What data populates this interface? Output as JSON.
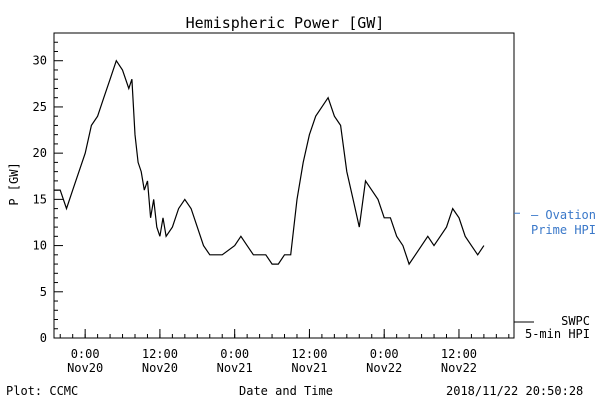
{
  "chart_data": {
    "type": "line",
    "title": "Hemispheric Power [GW]",
    "ylabel": "P [GW]",
    "xlabel": "Date and Time",
    "ylim": [
      0,
      33
    ],
    "xlim": [
      "2018-11-19 19:00",
      "2018-11-22 20:50"
    ],
    "y_ticks": [
      0,
      5,
      10,
      15,
      20,
      25,
      30
    ],
    "x_ticks": [
      {
        "t": "2018-11-20 00:00",
        "line1": "0:00",
        "line2": "Nov20"
      },
      {
        "t": "2018-11-20 12:00",
        "line1": "12:00",
        "line2": "Nov20"
      },
      {
        "t": "2018-11-21 00:00",
        "line1": "0:00",
        "line2": "Nov21"
      },
      {
        "t": "2018-11-21 12:00",
        "line1": "12:00",
        "line2": "Nov21"
      },
      {
        "t": "2018-11-22 00:00",
        "line1": "0:00",
        "line2": "Nov22"
      },
      {
        "t": "2018-11-22 12:00",
        "line1": "12:00",
        "line2": "Nov22"
      }
    ],
    "grid": false,
    "legend_position": "right",
    "series": [
      {
        "name": "SWPC 5-min HPI",
        "label_lines": [
          "SWPC",
          "5-min HPI"
        ],
        "style": "solid",
        "color": "#000000",
        "points": [
          [
            "2018-11-19 19:00",
            16
          ],
          [
            "2018-11-19 20:00",
            16
          ],
          [
            "2018-11-19 21:00",
            14
          ],
          [
            "2018-11-19 22:00",
            16
          ],
          [
            "2018-11-20 00:00",
            20
          ],
          [
            "2018-11-20 01:00",
            23
          ],
          [
            "2018-11-20 02:00",
            24
          ],
          [
            "2018-11-20 03:00",
            26
          ],
          [
            "2018-11-20 04:00",
            28
          ],
          [
            "2018-11-20 05:00",
            30
          ],
          [
            "2018-11-20 06:00",
            29
          ],
          [
            "2018-11-20 07:00",
            27
          ],
          [
            "2018-11-20 07:30",
            28
          ],
          [
            "2018-11-20 08:00",
            22
          ],
          [
            "2018-11-20 08:30",
            19
          ],
          [
            "2018-11-20 09:00",
            18
          ],
          [
            "2018-11-20 09:30",
            16
          ],
          [
            "2018-11-20 10:00",
            17
          ],
          [
            "2018-11-20 10:30",
            13
          ],
          [
            "2018-11-20 11:00",
            15
          ],
          [
            "2018-11-20 11:30",
            12
          ],
          [
            "2018-11-20 12:00",
            11
          ],
          [
            "2018-11-20 12:30",
            13
          ],
          [
            "2018-11-20 13:00",
            11
          ],
          [
            "2018-11-20 14:00",
            12
          ],
          [
            "2018-11-20 15:00",
            14
          ],
          [
            "2018-11-20 16:00",
            15
          ],
          [
            "2018-11-20 17:00",
            14
          ],
          [
            "2018-11-20 18:00",
            12
          ],
          [
            "2018-11-20 19:00",
            10
          ],
          [
            "2018-11-20 20:00",
            9
          ],
          [
            "2018-11-20 22:00",
            9
          ],
          [
            "2018-11-21 00:00",
            10
          ],
          [
            "2018-11-21 01:00",
            11
          ],
          [
            "2018-11-21 02:00",
            10
          ],
          [
            "2018-11-21 03:00",
            9
          ],
          [
            "2018-11-21 05:00",
            9
          ],
          [
            "2018-11-21 06:00",
            8
          ],
          [
            "2018-11-21 07:00",
            8
          ],
          [
            "2018-11-21 08:00",
            9
          ],
          [
            "2018-11-21 09:00",
            9
          ],
          [
            "2018-11-21 10:00",
            15
          ],
          [
            "2018-11-21 11:00",
            19
          ],
          [
            "2018-11-21 12:00",
            22
          ],
          [
            "2018-11-21 13:00",
            24
          ],
          [
            "2018-11-21 14:00",
            25
          ],
          [
            "2018-11-21 15:00",
            26
          ],
          [
            "2018-11-21 16:00",
            24
          ],
          [
            "2018-11-21 17:00",
            23
          ],
          [
            "2018-11-21 18:00",
            18
          ],
          [
            "2018-11-21 19:00",
            15
          ],
          [
            "2018-11-21 20:00",
            12
          ],
          [
            "2018-11-21 21:00",
            17
          ],
          [
            "2018-11-21 22:00",
            16
          ],
          [
            "2018-11-21 23:00",
            15
          ],
          [
            "2018-11-22 00:00",
            13
          ],
          [
            "2018-11-22 01:00",
            13
          ],
          [
            "2018-11-22 02:00",
            11
          ],
          [
            "2018-11-22 03:00",
            10
          ],
          [
            "2018-11-22 04:00",
            8
          ],
          [
            "2018-11-22 05:00",
            9
          ],
          [
            "2018-11-22 06:00",
            10
          ],
          [
            "2018-11-22 07:00",
            11
          ],
          [
            "2018-11-22 08:00",
            10
          ],
          [
            "2018-11-22 09:00",
            11
          ],
          [
            "2018-11-22 10:00",
            12
          ],
          [
            "2018-11-22 11:00",
            14
          ],
          [
            "2018-11-22 12:00",
            13
          ],
          [
            "2018-11-22 13:00",
            11
          ],
          [
            "2018-11-22 14:00",
            10
          ],
          [
            "2018-11-22 15:00",
            9
          ],
          [
            "2018-11-22 16:00",
            10
          ]
        ]
      },
      {
        "name": "Ovation Prime HPI",
        "label_lines": [
          "— Ovation",
          "Prime HPI"
        ],
        "style": "dotted",
        "color": "#3a78c9",
        "points": []
      }
    ]
  },
  "footer": {
    "left": "Plot: CCMC",
    "center": "Date and Time",
    "right": "2018/11/22 20:50:28"
  }
}
